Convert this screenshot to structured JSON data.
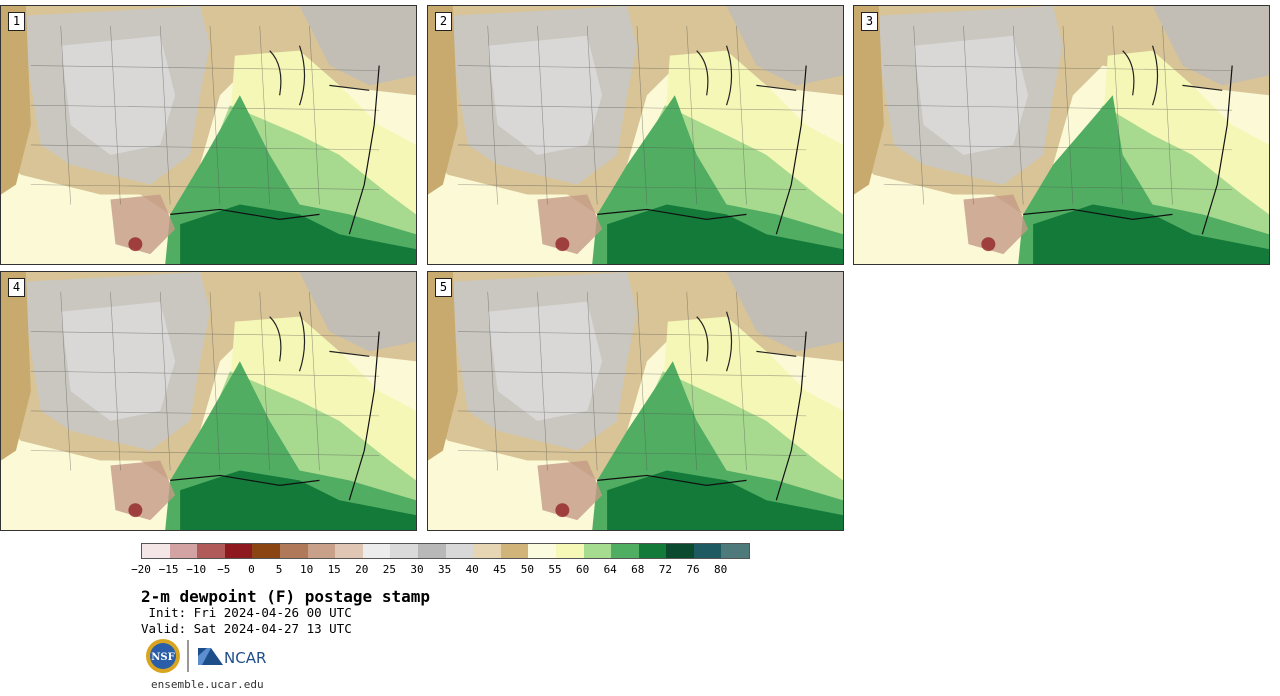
{
  "panels": [
    {
      "label": "1"
    },
    {
      "label": "2"
    },
    {
      "label": "3"
    },
    {
      "label": "4"
    },
    {
      "label": "5"
    }
  ],
  "colorbar": {
    "colors": [
      "#f4e6e6",
      "#d3a2a2",
      "#b05a5a",
      "#8e1a1f",
      "#8b4513",
      "#b07a5a",
      "#c9a08a",
      "#e0c6b4",
      "#ececec",
      "#dadada",
      "#b8b8b8",
      "#d8d8d8",
      "#e6d6b4",
      "#d0b47a",
      "#fbfbe0",
      "#f6f8b8",
      "#a6dc90",
      "#4fae62",
      "#137a3a",
      "#0b4a2e",
      "#1e5a62",
      "#4e7a7c"
    ],
    "tick_labels": [
      "−20",
      "−15",
      "−10",
      "−5",
      "0",
      "5",
      "10",
      "15",
      "20",
      "25",
      "30",
      "35",
      "40",
      "45",
      "50",
      "55",
      "60",
      "64",
      "68",
      "72",
      "76",
      "80"
    ]
  },
  "text": {
    "title": "2-m dewpoint (F) postage stamp",
    "init": " Init: Fri 2024-04-26 00 UTC",
    "valid": "Valid: Sat 2024-04-27 13 UTC",
    "url": "ensemble.ucar.edu",
    "nsf_logo": "NSF",
    "ncar_logo": "NCAR"
  },
  "icons": {
    "nsf": "nsf-logo-icon",
    "ncar": "ncar-logo-icon"
  }
}
